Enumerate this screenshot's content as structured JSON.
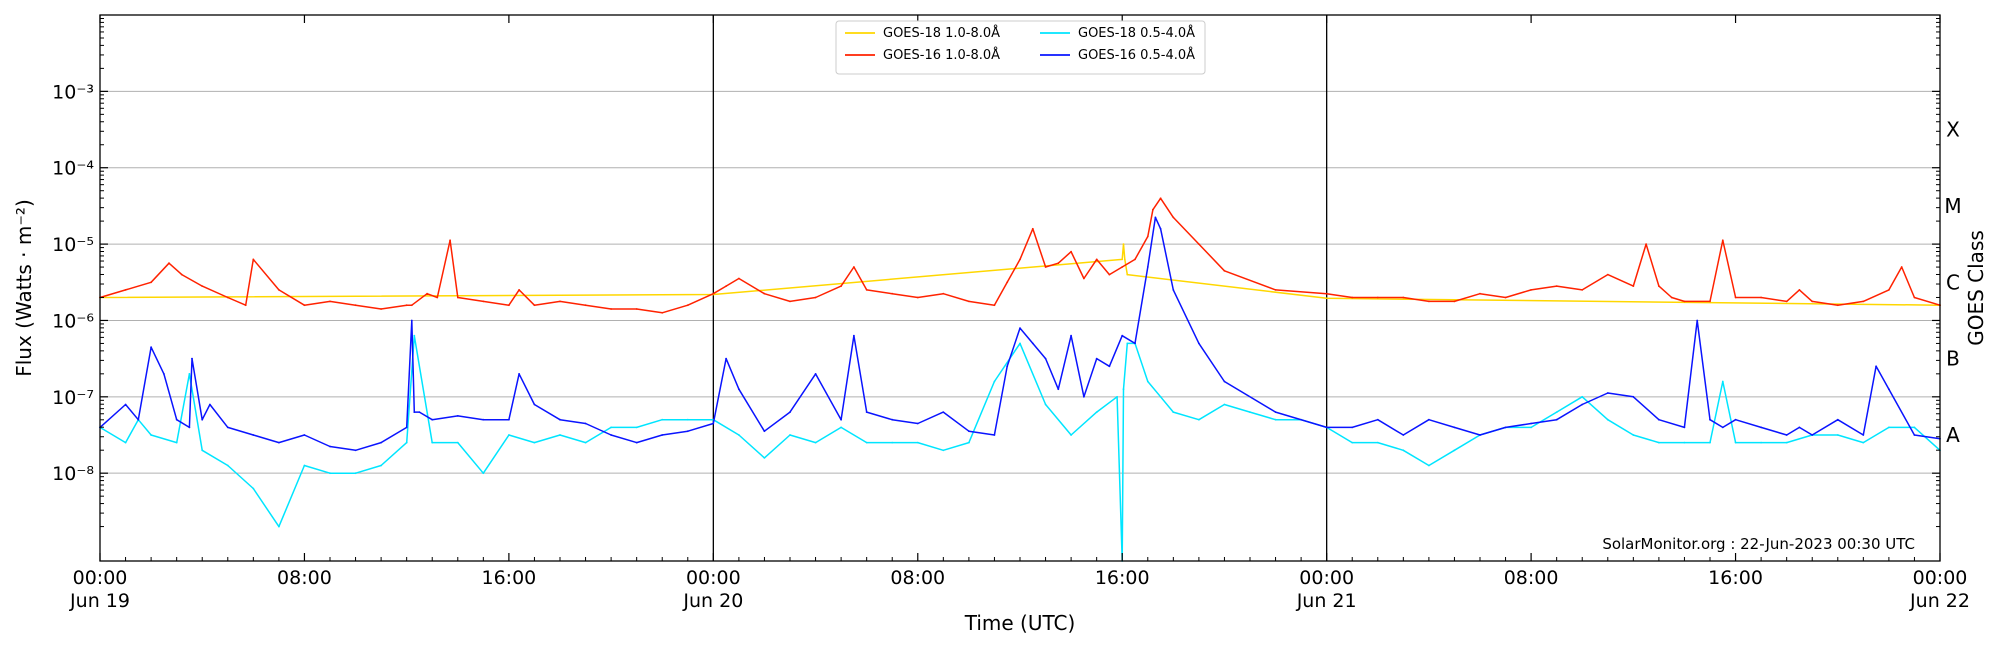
{
  "chart_data": {
    "type": "line",
    "title": "",
    "xlabel": "Time (UTC)",
    "ylabel": "Flux (Watts · m⁻²)",
    "y2label": "GOES Class",
    "yscale": "log",
    "xlim": [
      0,
      72
    ],
    "ylim_exponent": [
      -9.15,
      -2.0
    ],
    "y_ticks": [
      {
        "exp": -3,
        "label": "10⁻³"
      },
      {
        "exp": -4,
        "label": "10⁻⁴"
      },
      {
        "exp": -5,
        "label": "10⁻⁵"
      },
      {
        "exp": -6,
        "label": "10⁻⁶"
      },
      {
        "exp": -7,
        "label": "10⁻⁷"
      },
      {
        "exp": -8,
        "label": "10⁻⁸"
      }
    ],
    "x_ticks": [
      {
        "hour": 0,
        "line1": "00:00",
        "line2": "Jun 19"
      },
      {
        "hour": 8,
        "line1": "08:00",
        "line2": ""
      },
      {
        "hour": 16,
        "line1": "16:00",
        "line2": ""
      },
      {
        "hour": 24,
        "line1": "00:00",
        "line2": "Jun 20"
      },
      {
        "hour": 32,
        "line1": "08:00",
        "line2": ""
      },
      {
        "hour": 40,
        "line1": "16:00",
        "line2": ""
      },
      {
        "hour": 48,
        "line1": "00:00",
        "line2": "Jun 21"
      },
      {
        "hour": 56,
        "line1": "08:00",
        "line2": ""
      },
      {
        "hour": 64,
        "line1": "16:00",
        "line2": ""
      },
      {
        "hour": 72,
        "line1": "00:00",
        "line2": "Jun 22"
      }
    ],
    "day_boundaries": [
      24,
      48
    ],
    "goes_classes": [
      {
        "label": "X",
        "exp": -3.5
      },
      {
        "label": "M",
        "exp": -4.5
      },
      {
        "label": "C",
        "exp": -5.5
      },
      {
        "label": "B",
        "exp": -6.5
      },
      {
        "label": "A",
        "exp": -7.5
      }
    ],
    "grid": "horizontal at decades",
    "legend_position": "top-center",
    "annotation": "SolarMonitor.org : 22-Jun-2023 00:30 UTC",
    "series": [
      {
        "name": "GOES-18 1.0-8.0Å",
        "color": "#ffd700",
        "x": [
          0,
          24,
          40.0,
          40.05,
          40.1,
          40.2,
          48,
          72
        ],
        "y": [
          -5.7,
          -5.66,
          -5.2,
          -5.0,
          -5.2,
          -5.4,
          -5.71,
          -5.8
        ]
      },
      {
        "name": "GOES-16 1.0-8.0Å",
        "color": "#ff2200",
        "x": [
          0,
          1,
          2,
          2.7,
          3.2,
          4,
          5,
          5.7,
          6,
          7,
          8,
          9,
          10,
          11,
          12,
          12.2,
          12.8,
          13.2,
          13.7,
          14,
          15,
          16,
          16.4,
          17,
          18,
          19,
          20,
          21,
          22,
          23,
          24,
          24.5,
          25,
          26,
          27,
          28,
          29,
          29.5,
          30,
          31,
          32,
          33,
          34,
          35,
          35.5,
          36,
          36.5,
          37,
          37.5,
          38,
          38.5,
          39,
          39.5,
          40,
          40.5,
          41,
          41.2,
          41.5,
          42,
          43,
          44,
          46,
          48,
          49,
          50,
          51,
          52,
          53,
          54,
          55,
          56,
          57,
          58,
          59,
          60,
          60.5,
          61,
          61.5,
          62,
          63,
          63.5,
          64,
          65,
          66,
          66.5,
          67,
          68,
          69,
          70,
          70.5,
          71,
          72
        ],
        "y": [
          -5.7,
          -5.6,
          -5.5,
          -5.25,
          -5.4,
          -5.55,
          -5.7,
          -5.8,
          -5.2,
          -5.6,
          -5.8,
          -5.75,
          -5.8,
          -5.85,
          -5.8,
          -5.8,
          -5.65,
          -5.7,
          -4.95,
          -5.7,
          -5.75,
          -5.8,
          -5.6,
          -5.8,
          -5.75,
          -5.8,
          -5.85,
          -5.85,
          -5.9,
          -5.8,
          -5.65,
          -5.55,
          -5.45,
          -5.65,
          -5.75,
          -5.7,
          -5.55,
          -5.3,
          -5.6,
          -5.65,
          -5.7,
          -5.65,
          -5.75,
          -5.8,
          -5.5,
          -5.2,
          -4.8,
          -5.3,
          -5.25,
          -5.1,
          -5.45,
          -5.2,
          -5.4,
          -5.3,
          -5.2,
          -4.9,
          -4.55,
          -4.4,
          -4.65,
          -5.0,
          -5.35,
          -5.6,
          -5.65,
          -5.7,
          -5.7,
          -5.7,
          -5.75,
          -5.75,
          -5.65,
          -5.7,
          -5.6,
          -5.55,
          -5.6,
          -5.4,
          -5.55,
          -5.0,
          -5.55,
          -5.7,
          -5.75,
          -5.75,
          -4.95,
          -5.7,
          -5.7,
          -5.75,
          -5.6,
          -5.75,
          -5.8,
          -5.75,
          -5.6,
          -5.3,
          -5.7,
          -5.8
        ]
      },
      {
        "name": "GOES-18 0.5-4.0Å",
        "color": "#00e5ff",
        "x": [
          0,
          1,
          1.5,
          2,
          3,
          3.5,
          4,
          5,
          6,
          7,
          8,
          9,
          10,
          11,
          12,
          12.3,
          13,
          14,
          15,
          16,
          17,
          18,
          19,
          20,
          21,
          22,
          23,
          24,
          25,
          26,
          27,
          28,
          29,
          30,
          31,
          32,
          33,
          34,
          35,
          36,
          37,
          38,
          39,
          39.8,
          40.0,
          40.05,
          40.2,
          40.5,
          41,
          41.5,
          42,
          43,
          44,
          45,
          46,
          47,
          48,
          49,
          50,
          51,
          52,
          53,
          54,
          55,
          56,
          57,
          58,
          59,
          60,
          61,
          62,
          63,
          63.5,
          64,
          65,
          66,
          67,
          68,
          69,
          70,
          71,
          72
        ],
        "y": [
          -7.4,
          -7.6,
          -7.3,
          -7.5,
          -7.6,
          -6.7,
          -7.7,
          -7.9,
          -8.2,
          -8.7,
          -7.9,
          -8.0,
          -8.0,
          -7.9,
          -7.6,
          -6.2,
          -7.6,
          -7.6,
          -8.0,
          -7.5,
          -7.6,
          -7.5,
          -7.6,
          -7.4,
          -7.4,
          -7.3,
          -7.3,
          -7.3,
          -7.5,
          -7.8,
          -7.5,
          -7.6,
          -7.4,
          -7.6,
          -7.6,
          -7.6,
          -7.7,
          -7.6,
          -6.8,
          -6.3,
          -7.1,
          -7.5,
          -7.2,
          -7.0,
          -9.15,
          -6.9,
          -6.3,
          -6.3,
          -6.8,
          -7.0,
          -7.2,
          -7.3,
          -7.1,
          -7.2,
          -7.3,
          -7.3,
          -7.4,
          -7.6,
          -7.6,
          -7.7,
          -7.9,
          -7.7,
          -7.5,
          -7.4,
          -7.4,
          -7.2,
          -7.0,
          -7.3,
          -7.5,
          -7.6,
          -7.6,
          -7.6,
          -6.8,
          -7.6,
          -7.6,
          -7.6,
          -7.5,
          -7.5,
          -7.6,
          -7.4,
          -7.4,
          -7.7
        ]
      },
      {
        "name": "GOES-16 0.5-4.0Å",
        "color": "#0a14ff",
        "x": [
          0,
          1,
          1.5,
          2,
          2.5,
          3,
          3.5,
          3.6,
          4,
          4.3,
          5,
          6,
          7,
          8,
          9,
          10,
          11,
          12,
          12.2,
          12.3,
          12.5,
          13,
          14,
          15,
          16,
          16.4,
          17,
          18,
          19,
          20,
          21,
          22,
          23,
          24,
          24.5,
          25,
          26,
          27,
          28,
          29,
          29.5,
          30,
          31,
          32,
          33,
          34,
          35,
          35.5,
          36,
          36.5,
          37,
          37.5,
          38,
          38.5,
          39,
          39.5,
          40,
          40.5,
          41,
          41.3,
          41.5,
          42,
          43,
          44,
          46,
          48,
          49,
          50,
          51,
          52,
          53,
          54,
          55,
          56,
          57,
          58,
          59,
          60,
          61,
          62,
          62.5,
          63,
          63.5,
          64,
          65,
          66,
          66.5,
          67,
          68,
          69,
          69.5,
          70,
          71,
          72
        ],
        "y": [
          -7.4,
          -7.1,
          -7.3,
          -6.35,
          -6.7,
          -7.3,
          -7.4,
          -6.5,
          -7.3,
          -7.1,
          -7.4,
          -7.5,
          -7.6,
          -7.5,
          -7.65,
          -7.7,
          -7.6,
          -7.4,
          -6.0,
          -7.2,
          -7.2,
          -7.3,
          -7.25,
          -7.3,
          -7.3,
          -6.7,
          -7.1,
          -7.3,
          -7.35,
          -7.5,
          -7.6,
          -7.5,
          -7.45,
          -7.35,
          -6.5,
          -6.9,
          -7.45,
          -7.2,
          -6.7,
          -7.3,
          -6.2,
          -7.2,
          -7.3,
          -7.35,
          -7.2,
          -7.45,
          -7.5,
          -6.6,
          -6.1,
          -6.3,
          -6.5,
          -6.9,
          -6.2,
          -7.0,
          -6.5,
          -6.6,
          -6.2,
          -6.3,
          -5.3,
          -4.65,
          -4.8,
          -5.6,
          -6.3,
          -6.8,
          -7.2,
          -7.4,
          -7.4,
          -7.3,
          -7.5,
          -7.3,
          -7.4,
          -7.5,
          -7.4,
          -7.35,
          -7.3,
          -7.1,
          -6.95,
          -7.0,
          -7.3,
          -7.4,
          -6.0,
          -7.3,
          -7.4,
          -7.3,
          -7.4,
          -7.5,
          -7.4,
          -7.5,
          -7.3,
          -7.5,
          -6.6,
          -6.9,
          -7.5,
          -7.55
        ]
      }
    ]
  }
}
